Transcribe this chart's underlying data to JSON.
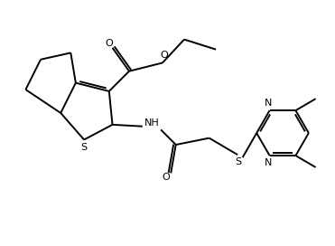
{
  "line_color": "#000000",
  "bg_color": "#ffffff",
  "lw": 1.4,
  "figsize": [
    3.71,
    2.72
  ],
  "dpi": 100,
  "xlim": [
    0,
    10
  ],
  "ylim": [
    0,
    7.3
  ]
}
